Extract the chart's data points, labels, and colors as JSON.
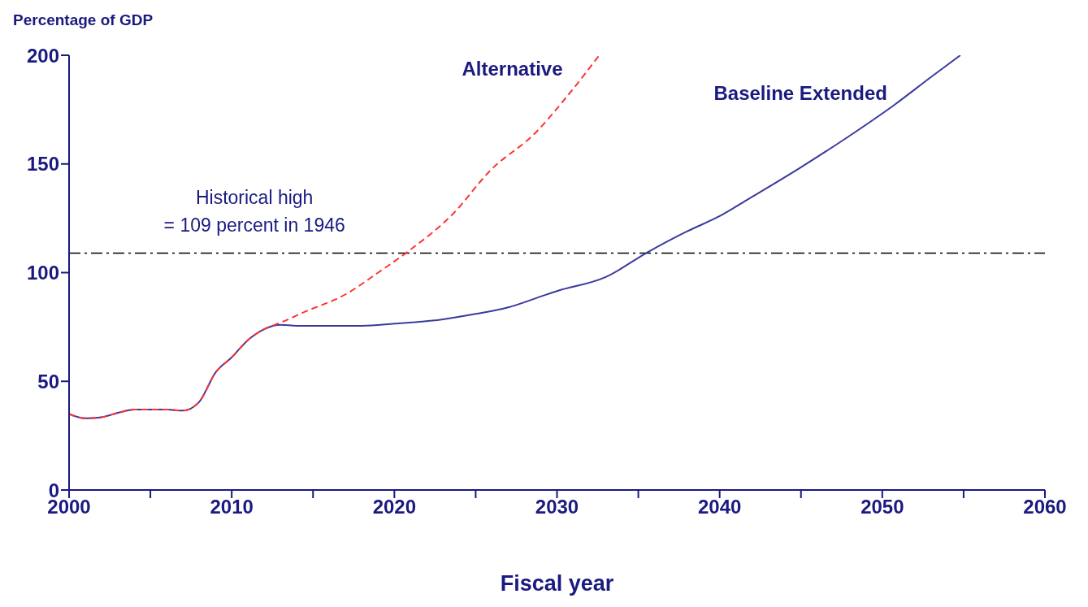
{
  "chart_data": {
    "type": "line",
    "ylabel": "Percentage of GDP",
    "xlabel": "Fiscal year",
    "xlim": [
      2000,
      2060
    ],
    "xticks": [
      2000,
      {
        "value": 2005,
        "label": null
      },
      2010,
      {
        "value": 2015,
        "label": null
      },
      2020,
      {
        "value": 2025,
        "label": null
      },
      2030,
      {
        "value": 2035,
        "label": null
      },
      2040,
      {
        "value": 2045,
        "label": null
      },
      2050,
      {
        "value": 2055,
        "label": null
      },
      2060
    ],
    "ylim": [
      0,
      200
    ],
    "yticks": [
      0,
      50,
      100,
      150,
      200
    ],
    "grid": false,
    "legend": false,
    "marker": "none",
    "ref_lines": [
      {
        "axis": "y",
        "value": 109,
        "label": "Historical high\n= 109 percent in 1946",
        "color": "#000000",
        "line_style": "dashdot"
      }
    ],
    "series": [
      {
        "name": "Baseline Extended",
        "color": "#3a3a9c",
        "line_style": "solid",
        "x": [
          2000,
          2001,
          2002,
          2003,
          2004,
          2005,
          2006,
          2007,
          2008,
          2009,
          2010,
          2011,
          2012,
          2013,
          2014,
          2016,
          2018,
          2020,
          2023,
          2025,
          2027,
          2029,
          2030,
          2033,
          2035.6,
          2038,
          2040,
          2041.8,
          2044.9,
          2048,
          2050.8,
          2053,
          2054.8
        ],
        "values": [
          35,
          33,
          33.5,
          35.5,
          37,
          37,
          37,
          36.5,
          40.5,
          54,
          61,
          69,
          74,
          76,
          75.5,
          75.5,
          75.5,
          76.5,
          78.5,
          81,
          84,
          89,
          91.5,
          98,
          109.5,
          119,
          126,
          134,
          148,
          163,
          177.5,
          190,
          200
        ]
      },
      {
        "name": "Alternative",
        "color": "#ff3333",
        "line_style": "dashed",
        "x": [
          2000,
          2001,
          2002,
          2003,
          2004,
          2005,
          2006,
          2007,
          2008,
          2009,
          2010,
          2011,
          2012,
          2013,
          2014.5,
          2017,
          2019,
          2020.8,
          2023.6,
          2025.9,
          2028.7,
          2030.5,
          2032.6
        ],
        "values": [
          35,
          33,
          33.5,
          35.5,
          37,
          37,
          37,
          36.5,
          40.5,
          54,
          61,
          69,
          74,
          77,
          82,
          90,
          100,
          109.5,
          127,
          147,
          164.5,
          180,
          200
        ]
      }
    ]
  }
}
